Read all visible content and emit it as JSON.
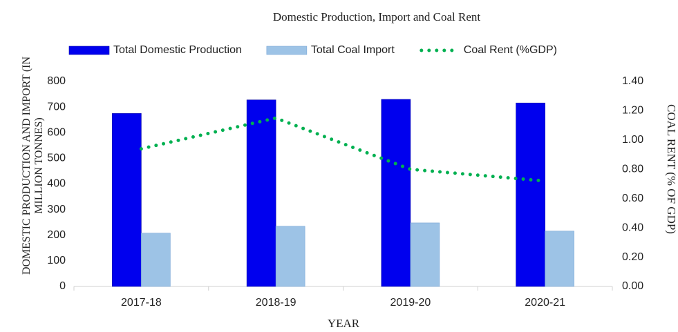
{
  "chart_data": {
    "type": "bar",
    "title": "Domestic Production, Import and Coal Rent",
    "xlabel": "YEAR",
    "ylabel": "DOMESTIC PRODUCTION AND IMPORT (IN MILLION TONNES)",
    "y2label": "COAL RENT (% OF GDP)",
    "categories": [
      "2017-18",
      "2018-19",
      "2019-20",
      "2020-21"
    ],
    "series": [
      {
        "name": "Total Domestic Production",
        "color": "#0000ee",
        "values": [
          675,
          728,
          730,
          716
        ]
      },
      {
        "name": "Total Coal Import",
        "color": "#9dc3e6",
        "values": [
          208,
          235,
          248,
          216
        ]
      },
      {
        "name": "Coal Rent (%GDP)",
        "color": "#00b050",
        "type": "line",
        "axis": "y2",
        "values": [
          0.94,
          1.15,
          0.8,
          0.72
        ]
      }
    ],
    "ylim": [
      0,
      800
    ],
    "yticks": [
      0,
      100,
      200,
      300,
      400,
      500,
      600,
      700,
      800
    ],
    "y2lim": [
      0,
      1.4
    ],
    "y2ticks": [
      {
        "value": 0,
        "label": "0.00"
      },
      {
        "value": 0.2,
        "label": "0.20"
      },
      {
        "value": 0.4,
        "label": "0.40"
      },
      {
        "value": 0.6,
        "label": "0.60"
      },
      {
        "value": 0.8,
        "label": "0.80"
      },
      {
        "value": 1.0,
        "label": "1.00"
      },
      {
        "value": 1.2,
        "label": "1.20"
      },
      {
        "value": 1.4,
        "label": "1.40"
      }
    ],
    "grid": false,
    "legend": "top"
  }
}
